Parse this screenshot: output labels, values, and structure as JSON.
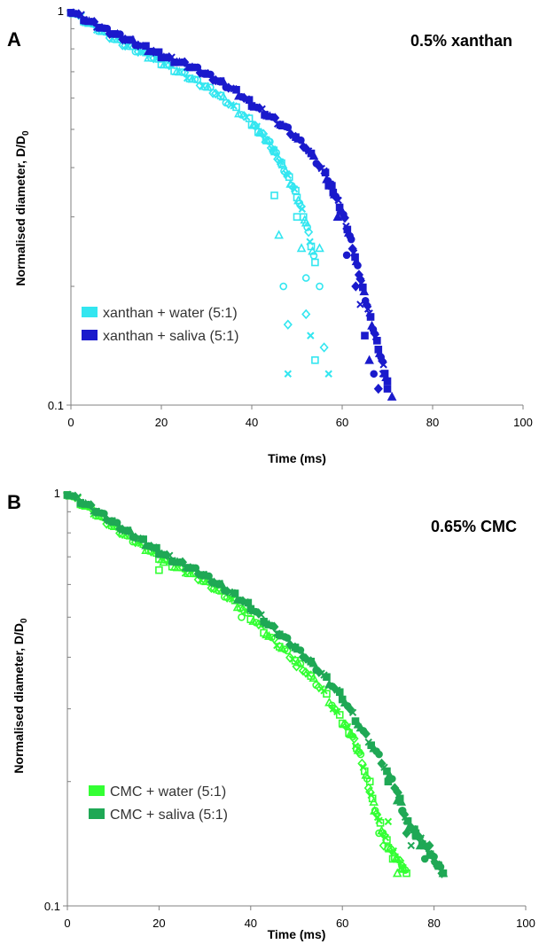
{
  "chart_data": [
    {
      "type": "scatter",
      "panel_label": "A",
      "title": "0.5% xanthan",
      "xlabel": "Time (ms)",
      "ylabel": "Normalised diameter, D/D",
      "ylabel_subscript": "0",
      "xlim": [
        0,
        100
      ],
      "ylim": [
        0.1,
        1
      ],
      "yscale": "log",
      "xticks": [
        "0",
        "20",
        "40",
        "60",
        "80",
        "100"
      ],
      "yticks": [
        "0.1",
        "1"
      ],
      "legend_position": "bottom-left",
      "series": [
        {
          "name": "xanthan + water (5:1)",
          "color": "#33e6f0",
          "points": [
            [
              0,
              1.0
            ],
            [
              4,
              0.93
            ],
            [
              8,
              0.87
            ],
            [
              12,
              0.82
            ],
            [
              16,
              0.78
            ],
            [
              20,
              0.74
            ],
            [
              24,
              0.7
            ],
            [
              28,
              0.66
            ],
            [
              32,
              0.62
            ],
            [
              36,
              0.57
            ],
            [
              40,
              0.52
            ],
            [
              42,
              0.49
            ],
            [
              44,
              0.46
            ],
            [
              46,
              0.42
            ],
            [
              48,
              0.38
            ],
            [
              50,
              0.34
            ],
            [
              52,
              0.29
            ],
            [
              54,
              0.23
            ]
          ],
          "markers_scattered": [
            [
              45,
              0.34
            ],
            [
              46,
              0.27
            ],
            [
              47,
              0.2
            ],
            [
              48,
              0.16
            ],
            [
              48,
              0.12
            ],
            [
              50,
              0.3
            ],
            [
              51,
              0.25
            ],
            [
              52,
              0.21
            ],
            [
              52,
              0.17
            ],
            [
              53,
              0.15
            ],
            [
              54,
              0.13
            ],
            [
              55,
              0.25
            ],
            [
              55,
              0.2
            ],
            [
              56,
              0.14
            ],
            [
              57,
              0.12
            ]
          ]
        },
        {
          "name": "xanthan + saliva (5:1)",
          "color": "#1a1acc",
          "points": [
            [
              0,
              1.0
            ],
            [
              4,
              0.94
            ],
            [
              8,
              0.89
            ],
            [
              12,
              0.85
            ],
            [
              16,
              0.81
            ],
            [
              20,
              0.77
            ],
            [
              24,
              0.74
            ],
            [
              28,
              0.71
            ],
            [
              32,
              0.67
            ],
            [
              36,
              0.63
            ],
            [
              40,
              0.58
            ],
            [
              44,
              0.54
            ],
            [
              48,
              0.5
            ],
            [
              52,
              0.45
            ],
            [
              56,
              0.39
            ],
            [
              58,
              0.35
            ],
            [
              60,
              0.31
            ],
            [
              62,
              0.26
            ],
            [
              64,
              0.21
            ],
            [
              66,
              0.17
            ],
            [
              68,
              0.14
            ],
            [
              70,
              0.115
            ]
          ],
          "markers_scattered": [
            [
              57,
              0.36
            ],
            [
              59,
              0.3
            ],
            [
              61,
              0.24
            ],
            [
              63,
              0.2
            ],
            [
              64,
              0.18
            ],
            [
              65,
              0.15
            ],
            [
              66,
              0.13
            ],
            [
              67,
              0.12
            ],
            [
              68,
              0.11
            ],
            [
              69,
              0.12
            ],
            [
              70,
              0.11
            ],
            [
              71,
              0.105
            ]
          ]
        }
      ]
    },
    {
      "type": "scatter",
      "panel_label": "B",
      "title": "0.65% CMC",
      "xlabel": "Time (ms)",
      "ylabel": "Normalised diameter, D/D",
      "ylabel_subscript": "0",
      "xlim": [
        0,
        100
      ],
      "ylim": [
        0.1,
        1
      ],
      "yscale": "log",
      "xticks": [
        "0",
        "20",
        "40",
        "60",
        "80",
        "100"
      ],
      "yticks": [
        "0.1",
        "1"
      ],
      "legend_position": "bottom-left",
      "series": [
        {
          "name": "CMC + water (5:1)",
          "color": "#33ff33",
          "points": [
            [
              0,
              1.0
            ],
            [
              4,
              0.93
            ],
            [
              8,
              0.86
            ],
            [
              12,
              0.8
            ],
            [
              16,
              0.75
            ],
            [
              20,
              0.7
            ],
            [
              24,
              0.66
            ],
            [
              28,
              0.63
            ],
            [
              32,
              0.59
            ],
            [
              36,
              0.55
            ],
            [
              40,
              0.5
            ],
            [
              44,
              0.45
            ],
            [
              48,
              0.41
            ],
            [
              52,
              0.37
            ],
            [
              56,
              0.33
            ],
            [
              60,
              0.28
            ],
            [
              62,
              0.26
            ],
            [
              64,
              0.23
            ],
            [
              66,
              0.19
            ],
            [
              68,
              0.16
            ],
            [
              70,
              0.14
            ],
            [
              72,
              0.13
            ],
            [
              74,
              0.12
            ]
          ],
          "markers_scattered": [
            [
              20,
              0.65
            ],
            [
              21,
              0.68
            ],
            [
              38,
              0.5
            ],
            [
              50,
              0.38
            ],
            [
              58,
              0.3
            ],
            [
              66,
              0.2
            ],
            [
              67,
              0.17
            ],
            [
              68,
              0.15
            ],
            [
              69,
              0.14
            ],
            [
              70,
              0.16
            ],
            [
              71,
              0.13
            ],
            [
              72,
              0.12
            ],
            [
              73,
              0.125
            ]
          ]
        },
        {
          "name": "CMC + saliva (5:1)",
          "color": "#1fa855",
          "points": [
            [
              0,
              1.0
            ],
            [
              4,
              0.94
            ],
            [
              8,
              0.88
            ],
            [
              12,
              0.82
            ],
            [
              16,
              0.77
            ],
            [
              20,
              0.72
            ],
            [
              24,
              0.68
            ],
            [
              28,
              0.65
            ],
            [
              32,
              0.61
            ],
            [
              36,
              0.57
            ],
            [
              40,
              0.53
            ],
            [
              44,
              0.48
            ],
            [
              48,
              0.44
            ],
            [
              52,
              0.4
            ],
            [
              56,
              0.36
            ],
            [
              60,
              0.32
            ],
            [
              64,
              0.27
            ],
            [
              68,
              0.23
            ],
            [
              72,
              0.19
            ],
            [
              74,
              0.16
            ],
            [
              76,
              0.15
            ],
            [
              78,
              0.14
            ],
            [
              80,
              0.13
            ],
            [
              82,
              0.12
            ]
          ],
          "markers_scattered": [
            [
              70,
              0.2
            ],
            [
              72,
              0.18
            ],
            [
              73,
              0.17
            ],
            [
              74,
              0.15
            ],
            [
              75,
              0.14
            ],
            [
              76,
              0.15
            ],
            [
              77,
              0.14
            ],
            [
              78,
              0.13
            ],
            [
              79,
              0.14
            ],
            [
              80,
              0.13
            ],
            [
              81,
              0.125
            ],
            [
              82,
              0.12
            ]
          ]
        }
      ]
    }
  ]
}
